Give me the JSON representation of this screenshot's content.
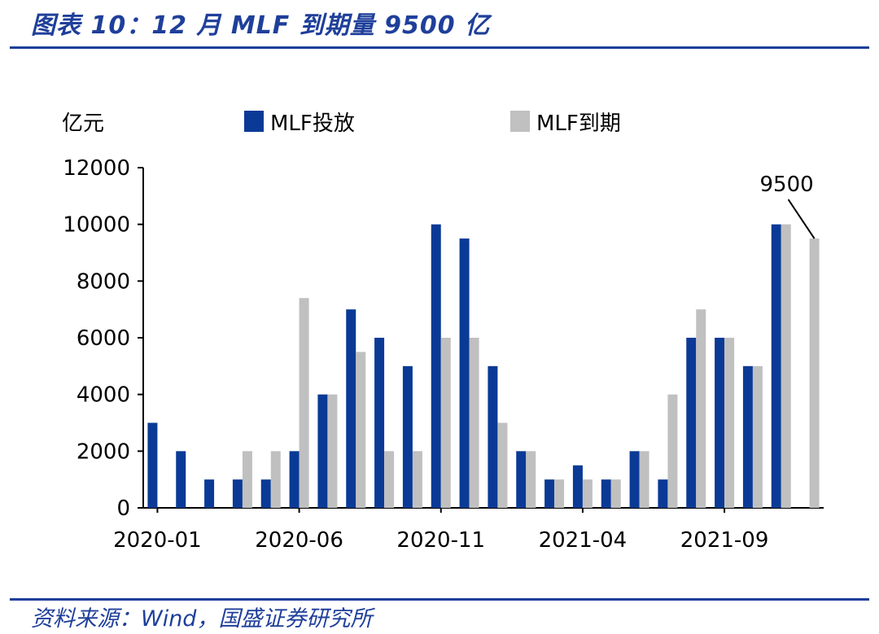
{
  "header": {
    "title": "图表 10：12 月 MLF 到期量 9500 亿"
  },
  "footer": {
    "source": "资料来源：Wind，国盛证券研究所"
  },
  "colors": {
    "accent": "#1f3f9a",
    "series_issue": "#0a3a96",
    "series_expire": "#c0c0c0"
  },
  "chart_data": {
    "type": "bar",
    "unit_label": "亿元",
    "categories": [
      "2020-01",
      "2020-02",
      "2020-03",
      "2020-04",
      "2020-05",
      "2020-06",
      "2020-07",
      "2020-08",
      "2020-09",
      "2020-10",
      "2020-11",
      "2020-12",
      "2021-01",
      "2021-02",
      "2021-03",
      "2021-04",
      "2021-05",
      "2021-06",
      "2021-07",
      "2021-08",
      "2021-09",
      "2021-10",
      "2021-11",
      "2021-12"
    ],
    "x_tick_labels": [
      "2020-01",
      "2020-06",
      "2020-11",
      "2021-04",
      "2021-09"
    ],
    "series": [
      {
        "name": "MLF投放",
        "values": [
          3000,
          2000,
          1000,
          1000,
          1000,
          2000,
          4000,
          7000,
          6000,
          5000,
          10000,
          9500,
          5000,
          2000,
          1000,
          1500,
          1000,
          2000,
          1000,
          6000,
          6000,
          5000,
          10000,
          null
        ]
      },
      {
        "name": "MLF到期",
        "values": [
          null,
          null,
          null,
          2000,
          2000,
          7400,
          4000,
          5500,
          2000,
          2000,
          6000,
          6000,
          3000,
          2000,
          1000,
          1000,
          1000,
          2000,
          4000,
          7000,
          6000,
          5000,
          10000,
          9500
        ]
      }
    ],
    "ylim": [
      0,
      12000
    ],
    "yticks": [
      0,
      2000,
      4000,
      6000,
      8000,
      10000,
      12000
    ],
    "annotation": {
      "text": "9500",
      "category": "2021-12",
      "series": "MLF到期"
    },
    "legend_position": "top",
    "grid": false
  }
}
